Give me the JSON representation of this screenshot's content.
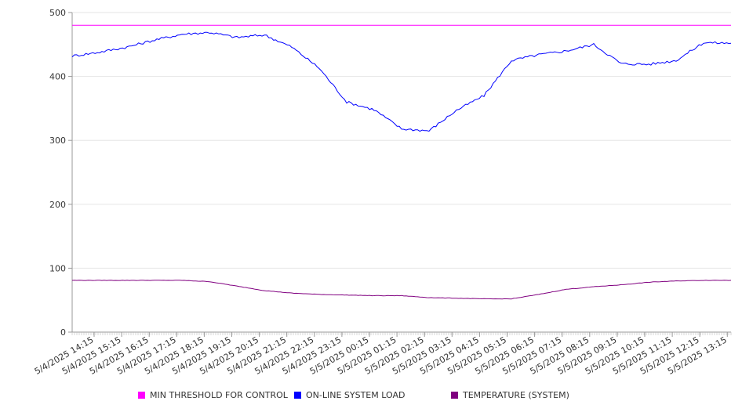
{
  "chart_data": {
    "type": "line",
    "title": "",
    "xlabel": "",
    "ylabel": "",
    "ylim": [
      0,
      500
    ],
    "y_ticks": [
      "0",
      "100",
      "200",
      "300",
      "400",
      "500"
    ],
    "x_tick_labels": [
      "5/4/2025 14:15",
      "5/4/2025 15:15",
      "5/4/2025 16:15",
      "5/4/2025 17:15",
      "5/4/2025 18:15",
      "5/4/2025 19:15",
      "5/4/2025 20:15",
      "5/4/2025 21:15",
      "5/4/2025 22:15",
      "5/4/2025 23:15",
      "5/5/2025 00:15",
      "5/5/2025 01:15",
      "5/5/2025 02:15",
      "5/5/2025 03:15",
      "5/5/2025 04:15",
      "5/5/2025 05:15",
      "5/5/2025 06:15",
      "5/5/2025 07:15",
      "5/5/2025 08:15",
      "5/5/2025 09:15",
      "5/5/2025 10:15",
      "5/5/2025 11:15",
      "5/5/2025 12:15",
      "5/5/2025 13:15"
    ],
    "grid": true,
    "legend_position": "bottom",
    "series": [
      {
        "name": "MIN THRESHOLD FOR CONTROL",
        "color": "#ff00ff",
        "values": [
          480,
          480,
          480,
          480,
          480,
          480,
          480,
          480,
          480,
          480,
          480,
          480,
          480,
          480,
          480,
          480,
          480,
          480,
          480,
          480,
          480,
          480,
          480,
          480,
          480
        ]
      },
      {
        "name": "ON-LINE SYSTEM LOAD",
        "color": "#0000ff",
        "values": [
          432,
          438,
          446,
          457,
          466,
          469,
          461,
          465,
          446,
          413,
          360,
          348,
          318,
          315,
          347,
          370,
          425,
          434,
          440,
          450,
          420,
          419,
          425,
          453,
          452
        ]
      },
      {
        "name": "TEMPERATURE (SYSTEM)",
        "color": "#800080",
        "values": [
          81,
          81,
          81,
          81,
          81,
          79,
          72,
          65,
          61,
          59,
          58,
          57,
          57,
          54,
          53,
          52,
          52,
          59,
          67,
          71,
          74,
          78,
          80,
          81,
          81
        ]
      }
    ]
  }
}
